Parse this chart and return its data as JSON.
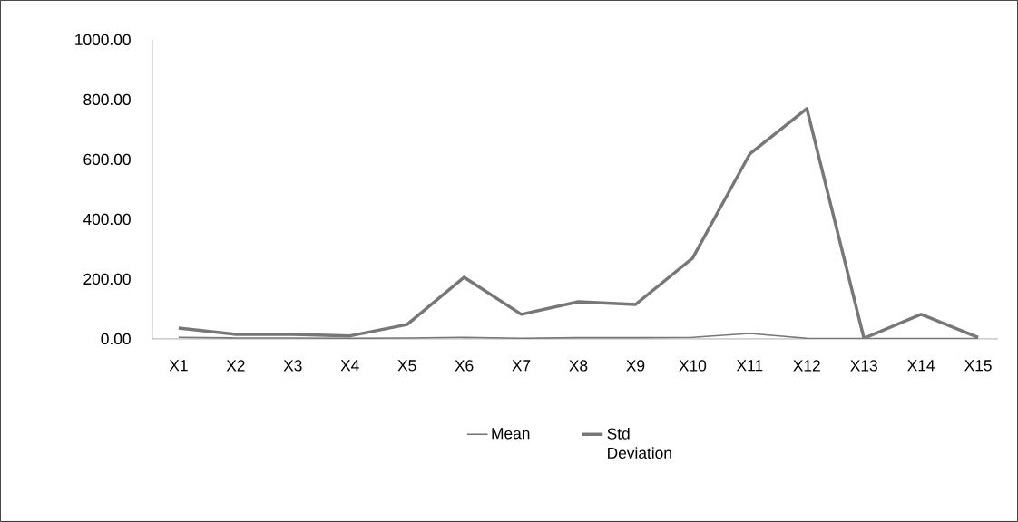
{
  "chart_data": {
    "type": "line",
    "categories": [
      "X1",
      "X2",
      "X3",
      "X4",
      "X5",
      "X6",
      "X7",
      "X8",
      "X9",
      "X10",
      "X11",
      "X12",
      "X13",
      "X14",
      "X15"
    ],
    "series": [
      {
        "name": "Mean",
        "color": "#777777",
        "values": [
          5,
          3,
          3,
          2,
          3,
          5,
          2,
          4,
          4,
          5,
          18,
          2,
          1,
          1,
          1
        ]
      },
      {
        "name": "Std Deviation",
        "color": "#777777",
        "values": [
          36,
          15,
          15,
          10,
          48,
          206,
          82,
          124,
          115,
          270,
          618,
          770,
          2,
          82,
          5
        ]
      }
    ],
    "ylim": [
      0,
      1000
    ],
    "yticks": [
      {
        "value": 0,
        "label": "0.00"
      },
      {
        "value": 200,
        "label": "200.00"
      },
      {
        "value": 400,
        "label": "400.00"
      },
      {
        "value": 600,
        "label": "600.00"
      },
      {
        "value": 800,
        "label": "800.00"
      },
      {
        "value": 1000,
        "label": "1000.00"
      }
    ],
    "grid": false,
    "legend": "bottom",
    "marker": "none",
    "line_style": "solid"
  }
}
